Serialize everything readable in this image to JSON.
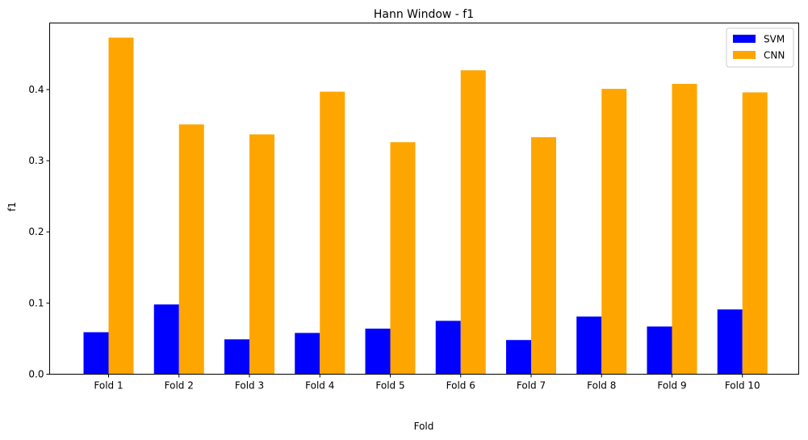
{
  "chart_data": {
    "type": "bar",
    "title": "Hann Window - f1",
    "xlabel": "Fold",
    "ylabel": "f1",
    "categories": [
      "Fold 1",
      "Fold 2",
      "Fold 3",
      "Fold 4",
      "Fold 5",
      "Fold 6",
      "Fold 7",
      "Fold 8",
      "Fold 9",
      "Fold 10"
    ],
    "series": [
      {
        "name": "SVM",
        "color": "#0000ff",
        "values": [
          0.059,
          0.098,
          0.049,
          0.058,
          0.064,
          0.075,
          0.048,
          0.081,
          0.067,
          0.091
        ]
      },
      {
        "name": "CNN",
        "color": "#ffa500",
        "values": [
          0.473,
          0.351,
          0.337,
          0.397,
          0.326,
          0.427,
          0.333,
          0.401,
          0.408,
          0.396
        ]
      }
    ],
    "ylim": [
      0,
      0.4935
    ],
    "yticks": [
      0.0,
      0.1,
      0.2,
      0.3,
      0.4
    ],
    "ytick_labels": [
      "0.0",
      "0.1",
      "0.2",
      "0.3",
      "0.4"
    ],
    "legend_position": "top-right",
    "grid": false
  }
}
